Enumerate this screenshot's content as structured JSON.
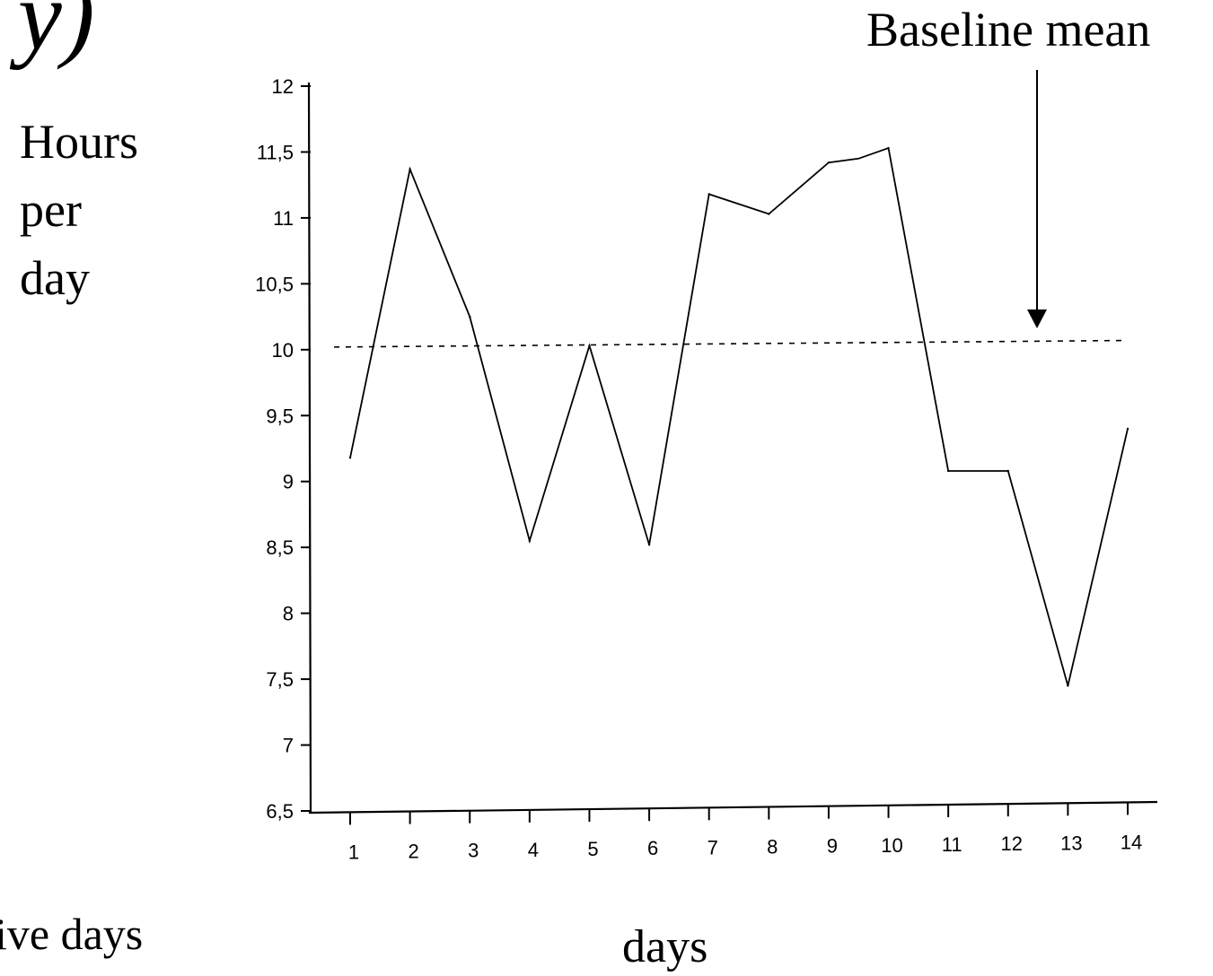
{
  "fragments": {
    "top": "y)",
    "bottom_left": "ive days"
  },
  "annotation": {
    "text": "Baseline mean"
  },
  "chart_data": {
    "type": "line",
    "title": "",
    "xlabel": "days",
    "ylabel_lines": [
      "Hours",
      "per",
      "day"
    ],
    "x": [
      1,
      2,
      3,
      4,
      5,
      6,
      7,
      8,
      9,
      10,
      11,
      12,
      13,
      14
    ],
    "x_tick_labels": [
      "1",
      "2",
      "3",
      "4",
      "5",
      "6",
      "7",
      "8",
      "9",
      "10",
      "11",
      "12",
      "13",
      "14"
    ],
    "y_tick_values": [
      6.5,
      7,
      7.5,
      8,
      8.5,
      9,
      9.5,
      10,
      10.5,
      11,
      11.5,
      12
    ],
    "y_tick_labels": [
      "6,5",
      "7",
      "7,5",
      "8",
      "8,5",
      "9",
      "9,5",
      "10",
      "10,5",
      "11",
      "11,5",
      "12"
    ],
    "ylim": [
      6.5,
      12
    ],
    "grid": false,
    "series": [
      {
        "values": [
          9.18,
          11.37,
          10.25,
          8.55,
          10.03,
          8.52,
          11.18,
          11.03,
          11.42,
          11.53,
          9.08,
          9.08,
          7.45,
          9.4
        ],
        "extra_points": [
          {
            "x": 9.5,
            "y": 11.45
          },
          {
            "x": 11.5,
            "y": 9.08
          }
        ],
        "color": "#000000",
        "style": "solid"
      }
    ],
    "baseline": {
      "value": 10.02,
      "value_end": 10.07,
      "style": "dashed",
      "color": "#000000"
    }
  }
}
